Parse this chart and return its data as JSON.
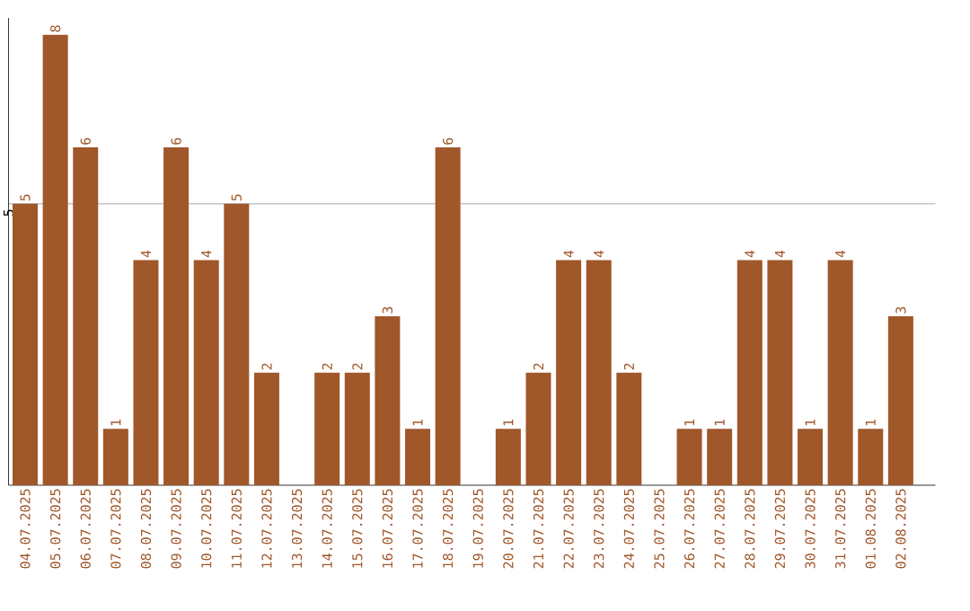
{
  "chart_data": {
    "type": "bar",
    "categories": [
      "04.07.2025",
      "05.07.2025",
      "06.07.2025",
      "07.07.2025",
      "08.07.2025",
      "09.07.2025",
      "10.07.2025",
      "11.07.2025",
      "12.07.2025",
      "13.07.2025",
      "14.07.2025",
      "15.07.2025",
      "16.07.2025",
      "17.07.2025",
      "18.07.2025",
      "19.07.2025",
      "20.07.2025",
      "21.07.2025",
      "22.07.2025",
      "23.07.2025",
      "24.07.2025",
      "25.07.2025",
      "26.07.2025",
      "27.07.2025",
      "28.07.2025",
      "29.07.2025",
      "30.07.2025",
      "31.07.2025",
      "01.08.2025",
      "02.08.2025"
    ],
    "values": [
      5,
      8,
      6,
      1,
      4,
      6,
      4,
      5,
      2,
      0,
      2,
      2,
      3,
      1,
      6,
      0,
      1,
      2,
      4,
      4,
      2,
      0,
      1,
      1,
      4,
      4,
      1,
      4,
      1,
      3
    ],
    "value_labels": [
      "5",
      "8",
      "6",
      "1",
      "4",
      "6",
      "4",
      "5",
      "2",
      null,
      "2",
      "2",
      "3",
      "1",
      "6",
      null,
      "1",
      "2",
      "4",
      "4",
      "2",
      null,
      "1",
      "1",
      "4",
      "4",
      "1",
      "4",
      "1",
      "3"
    ],
    "color": "#a0572a",
    "ylim": [
      0,
      8.3
    ],
    "yticks": [
      5
    ],
    "grid": "y"
  }
}
